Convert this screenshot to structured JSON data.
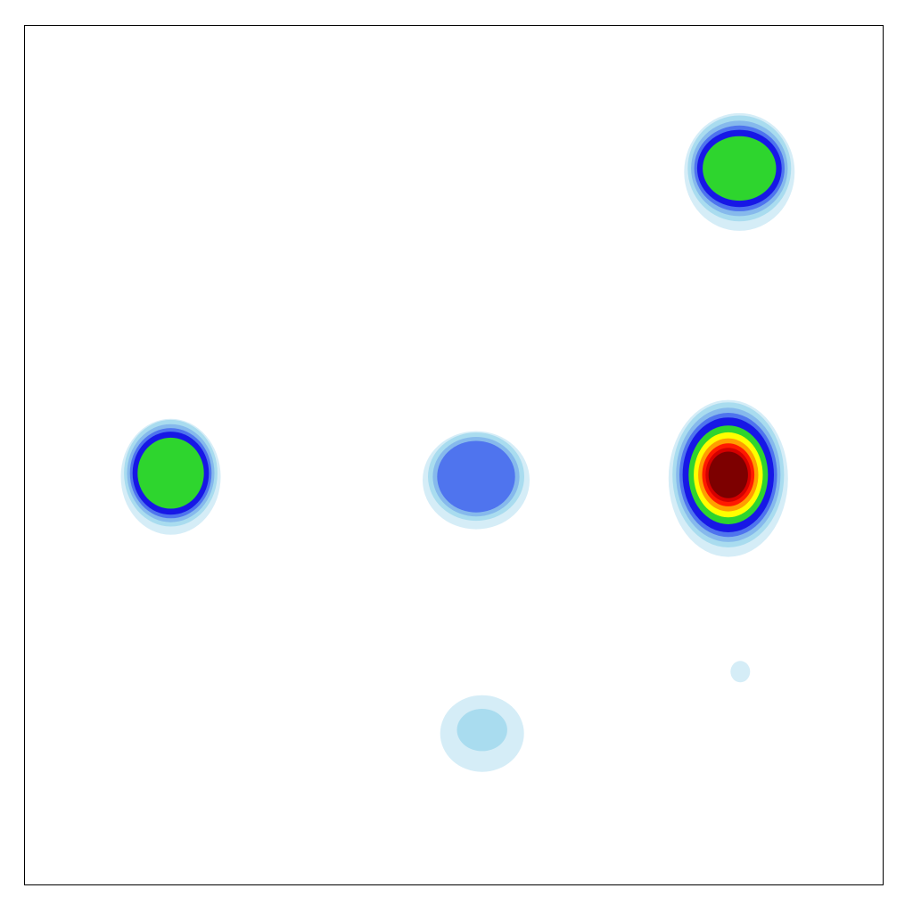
{
  "chart_data": {
    "type": "heatmap",
    "title": "",
    "xlabel": "",
    "ylabel": "",
    "grid": false,
    "legend": "none",
    "axes_ticks": false,
    "xlim": [
      0,
      1
    ],
    "ylim": [
      0,
      1
    ],
    "colorscale": [
      "#d5edf7",
      "#a9dcef",
      "#86b9ec",
      "#4f74ee",
      "#1717e6",
      "#2ed52e",
      "#ffff00",
      "#ff9e00",
      "#ff1a00",
      "#d40000",
      "#7d0000"
    ],
    "peaks": [
      {
        "name": "peak-top-right",
        "x": 0.833,
        "y": 0.834,
        "level": 6
      },
      {
        "name": "peak-left",
        "x": 0.17,
        "y": 0.479,
        "level": 6
      },
      {
        "name": "peak-center",
        "x": 0.526,
        "y": 0.475,
        "level": 4
      },
      {
        "name": "peak-right",
        "x": 0.82,
        "y": 0.477,
        "level": 11
      },
      {
        "name": "peak-small-right",
        "x": 0.834,
        "y": 0.252,
        "level": 1
      },
      {
        "name": "peak-bottom-center",
        "x": 0.533,
        "y": 0.18,
        "level": 2
      }
    ]
  }
}
